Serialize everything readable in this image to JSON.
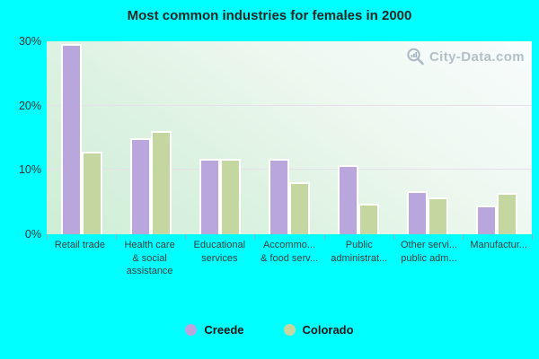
{
  "title": "Most common industries for females in 2000",
  "watermark": {
    "text": "City-Data.com"
  },
  "colors": {
    "background": "#00ffff",
    "creede": "#b9a6dc",
    "colorado": "#c4d7a0",
    "plot_gradient_top": "#f8fcfd",
    "plot_gradient_bottom": "#cdeed6",
    "gridline": "#e7dfe9",
    "axis_text": "#3b3b3b",
    "title_text": "#262626",
    "watermark_text": "#b3bfc7",
    "tick": "#8fb0b8"
  },
  "chart_data": {
    "type": "bar",
    "title": "Most common industries for females in 2000",
    "categories": [
      "Retail trade",
      "Health care & social assistance",
      "Educational services",
      "Accommo... & food serv...",
      "Public administrat...",
      "Other servi... public adm...",
      "Manufactur..."
    ],
    "category_display": [
      [
        "Retail trade"
      ],
      [
        "Health care",
        "& social",
        "assistance"
      ],
      [
        "Educational",
        "services"
      ],
      [
        "Accommo...",
        "& food serv..."
      ],
      [
        "Public",
        "administrat..."
      ],
      [
        "Other servi...",
        "public adm..."
      ],
      [
        "Manufactur..."
      ]
    ],
    "series": [
      {
        "name": "Creede",
        "color": "#b9a6dc",
        "values": [
          29.3,
          14.6,
          11.4,
          11.4,
          10.4,
          6.4,
          4.2
        ]
      },
      {
        "name": "Colorado",
        "color": "#c4d7a0",
        "values": [
          12.5,
          15.8,
          11.4,
          7.8,
          4.5,
          5.5,
          6.2
        ]
      }
    ],
    "ylim": [
      0,
      30
    ],
    "yticks": [
      {
        "value": 0,
        "label": "0%"
      },
      {
        "value": 10,
        "label": "10%"
      },
      {
        "value": 20,
        "label": "20%"
      },
      {
        "value": 30,
        "label": "30%"
      }
    ],
    "gridlines": [
      10,
      20
    ],
    "grid": "horizontal",
    "legend_position": "bottom"
  },
  "legend": {
    "items": [
      {
        "label": "Creede"
      },
      {
        "label": "Colorado"
      }
    ]
  }
}
